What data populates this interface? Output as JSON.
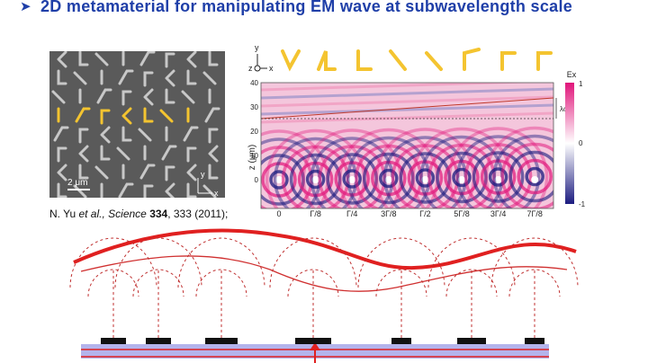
{
  "header": {
    "title": "2D metamaterial for manipulating EM wave at subwavelength scale"
  },
  "sem_image": {
    "scale_bar": "2 μm",
    "axis_x": "x",
    "axis_y": "y"
  },
  "citation": {
    "authors": "N. Yu ",
    "etal": "et al.,",
    "journal": " Science ",
    "volume": "334",
    "rest": ", 333 (2011);"
  },
  "field_plot": {
    "axes_labels": {
      "y": "y",
      "z": "z",
      "x": "x"
    },
    "y_label": "z (μm)",
    "y_ticks": [
      "40",
      "30",
      "20",
      "10",
      "0"
    ],
    "x_labels": [
      "0",
      "Γ/8",
      "Γ/4",
      "3Γ/8",
      "Γ/2",
      "5Γ/8",
      "3Γ/4",
      "7Γ/8"
    ],
    "wavelength_label": "λo",
    "colorbar": {
      "title": "Ex",
      "ticks": [
        "1",
        "0",
        "-1"
      ]
    }
  }
}
